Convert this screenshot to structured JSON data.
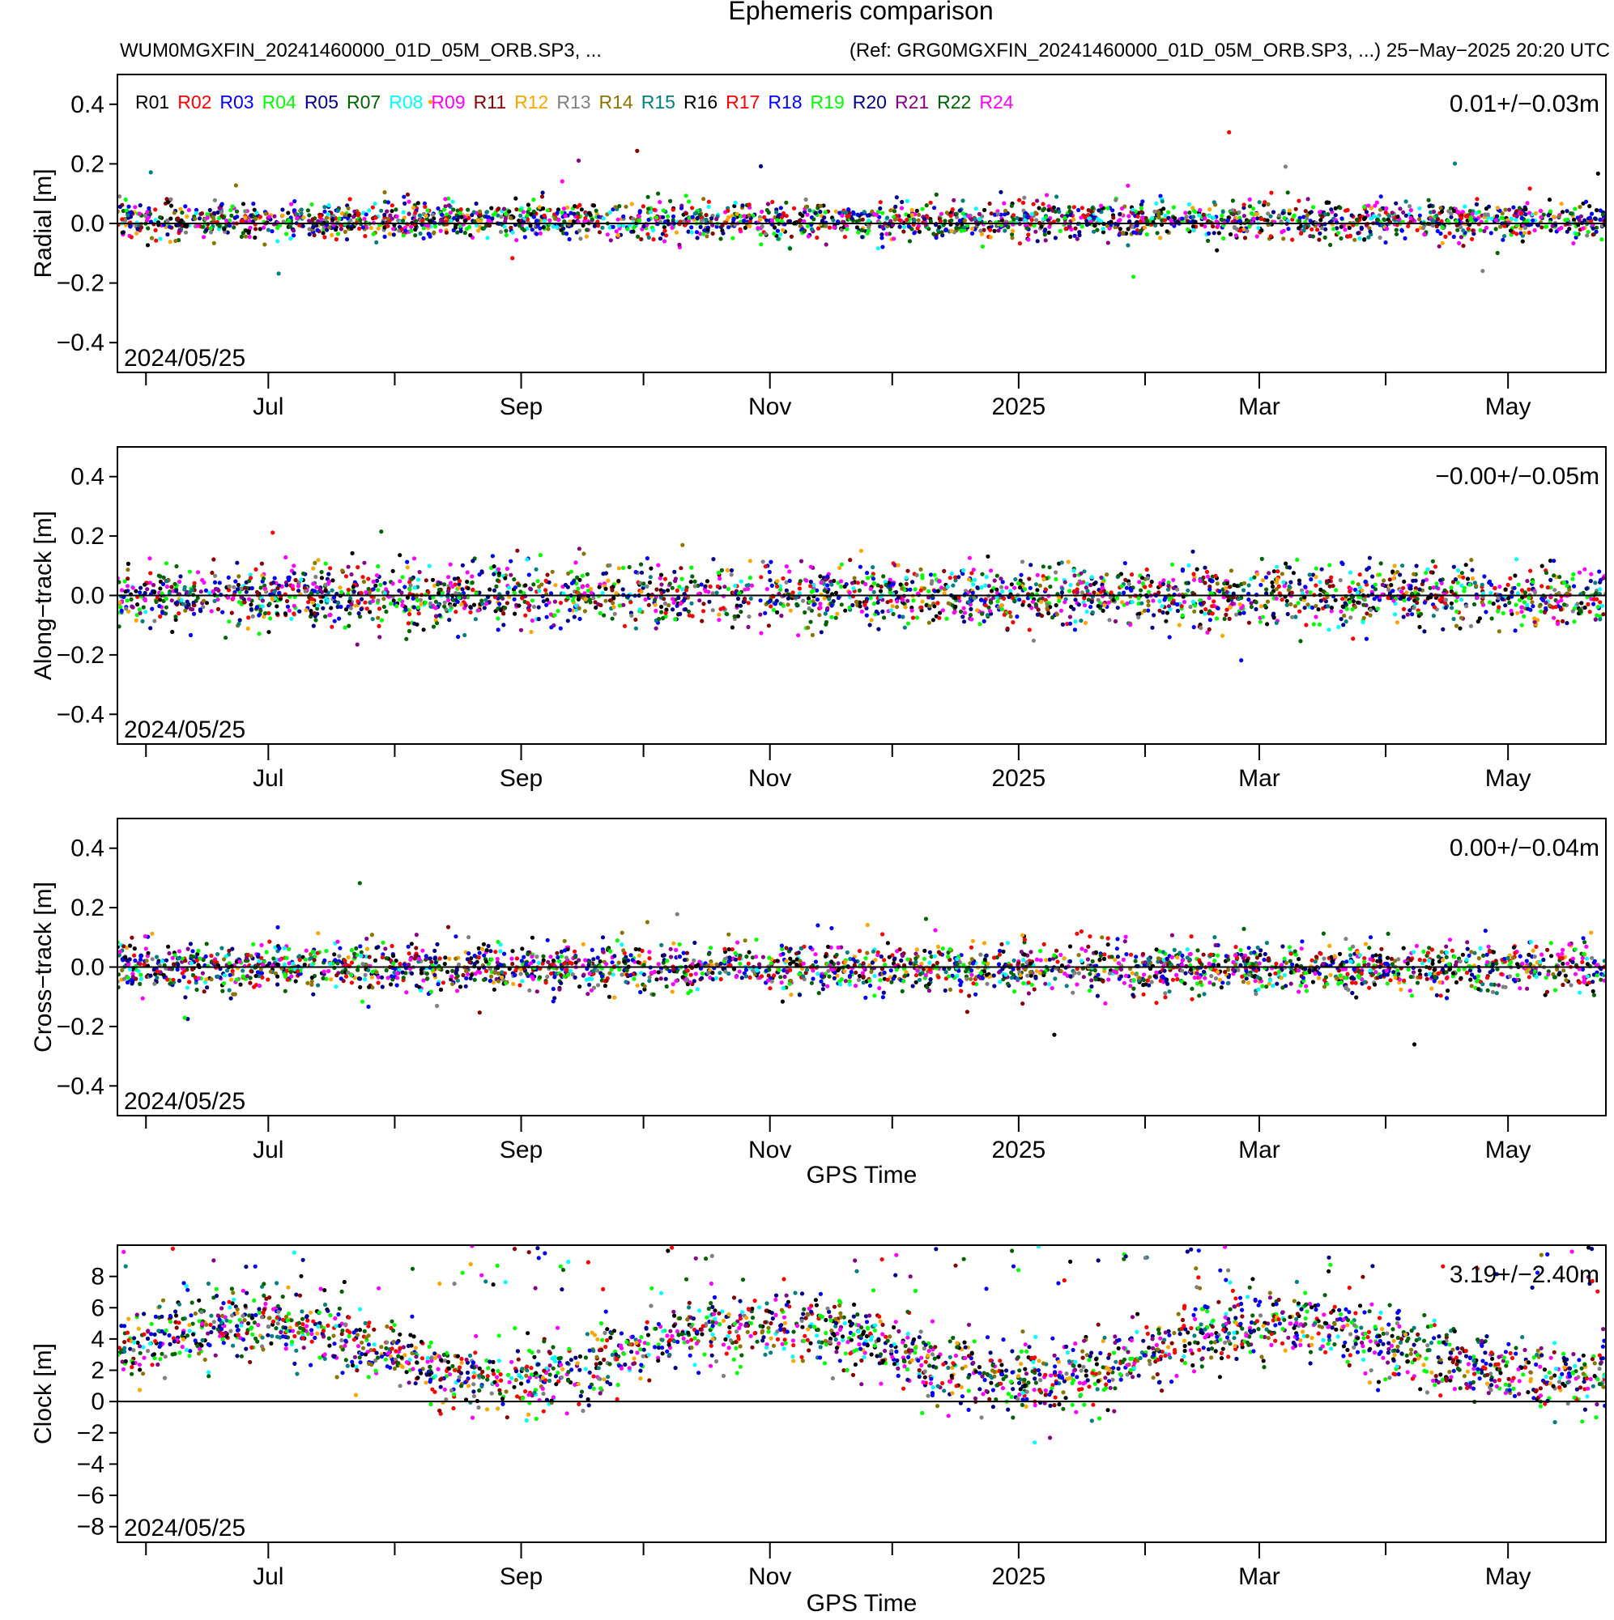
{
  "title": "Ephemeris comparison",
  "subtitle_left": "WUM0MGXFIN_20241460000_01D_05M_ORB.SP3, ...",
  "subtitle_right": "(Ref: GRG0MGXFIN_20241460000_01D_05M_ORB.SP3, ...) 25−May−2025 20:20 UTC",
  "chart_data": [
    {
      "type": "scatter",
      "panel": "radial",
      "ylabel": "Radial [m]",
      "xlabel": "",
      "ylim": [
        -0.5,
        0.5
      ],
      "yticks": [
        -0.4,
        -0.2,
        0.0,
        0.2,
        0.4
      ],
      "ytick_labels": [
        "−0.4",
        "−0.2",
        "0.0",
        "0.2",
        "0.4"
      ],
      "xlim": [
        "2024-05-25",
        "2025-05-25"
      ],
      "x_month_ticks": [
        "2024-06-01",
        "2024-07-01",
        "2024-08-01",
        "2024-09-01",
        "2024-10-01",
        "2024-11-01",
        "2024-12-01",
        "2025-01-01",
        "2025-02-01",
        "2025-03-01",
        "2025-04-01",
        "2025-05-01"
      ],
      "x_tick_labels": [
        "Jul",
        "Sep",
        "Nov",
        "2025",
        "Mar",
        "May"
      ],
      "start_label": "2024/05/25",
      "stat_label": "0.01+/−0.03m",
      "mean": 0.01,
      "std": 0.03,
      "legend": {
        "placement": "top-left",
        "entries": [
          "R01",
          "R02",
          "R03",
          "R04",
          "R05",
          "R07",
          "R08",
          "R09",
          "R11",
          "R12",
          "R13",
          "R14",
          "R15",
          "R16",
          "R17",
          "R18",
          "R19",
          "R20",
          "R21",
          "R22",
          "R24"
        ]
      },
      "zero_line": true
    },
    {
      "type": "scatter",
      "panel": "along",
      "ylabel": "Along−track [m]",
      "xlabel": "",
      "ylim": [
        -0.5,
        0.5
      ],
      "yticks": [
        -0.4,
        -0.2,
        0.0,
        0.2,
        0.4
      ],
      "ytick_labels": [
        "−0.4",
        "−0.2",
        "0.0",
        "0.2",
        "0.4"
      ],
      "xlim": [
        "2024-05-25",
        "2025-05-25"
      ],
      "x_tick_labels": [
        "Jul",
        "Sep",
        "Nov",
        "2025",
        "Mar",
        "May"
      ],
      "start_label": "2024/05/25",
      "stat_label": "−0.00+/−0.05m",
      "mean": -0.0,
      "std": 0.05,
      "zero_line": true
    },
    {
      "type": "scatter",
      "panel": "cross",
      "ylabel": "Cross−track [m]",
      "xlabel": "GPS Time",
      "ylim": [
        -0.5,
        0.5
      ],
      "yticks": [
        -0.4,
        -0.2,
        0.0,
        0.2,
        0.4
      ],
      "ytick_labels": [
        "−0.4",
        "−0.2",
        "0.0",
        "0.2",
        "0.4"
      ],
      "xlim": [
        "2024-05-25",
        "2025-05-25"
      ],
      "x_tick_labels": [
        "Jul",
        "Sep",
        "Nov",
        "2025",
        "Mar",
        "May"
      ],
      "start_label": "2024/05/25",
      "stat_label": "0.00+/−0.04m",
      "mean": 0.0,
      "std": 0.04,
      "zero_line": true
    },
    {
      "type": "scatter",
      "panel": "clock",
      "ylabel": "Clock [m]",
      "xlabel": "GPS Time",
      "ylim": [
        -9,
        10
      ],
      "yticks": [
        -8,
        -6,
        -4,
        -2,
        0,
        2,
        4,
        6,
        8
      ],
      "ytick_labels": [
        "−8",
        "−6",
        "−4",
        "−2",
        "0",
        "2",
        "4",
        "6",
        "8"
      ],
      "xlim": [
        "2024-05-25",
        "2025-05-25"
      ],
      "x_tick_labels": [
        "Jul",
        "Sep",
        "Nov",
        "2025",
        "Mar",
        "May"
      ],
      "start_label": "2024/05/25",
      "stat_label": "3.19+/−2.40m",
      "mean": 3.19,
      "std": 2.4,
      "zero_line": true
    }
  ],
  "series_colors": {
    "R01": "#000000",
    "R02": "#ff0000",
    "R03": "#0000ff",
    "R04": "#00ff00",
    "R05": "#00008b",
    "R07": "#006400",
    "R08": "#00ffff",
    "R09": "#ff00ff",
    "R11": "#8b0000",
    "R12": "#ffa500",
    "R13": "#808080",
    "R14": "#8b7500",
    "R15": "#008080",
    "R16": "#000000",
    "R17": "#ff0000",
    "R18": "#0000ff",
    "R19": "#00ff00",
    "R20": "#00008b",
    "R21": "#8b008b",
    "R22": "#006400",
    "R24": "#ff00ff"
  }
}
